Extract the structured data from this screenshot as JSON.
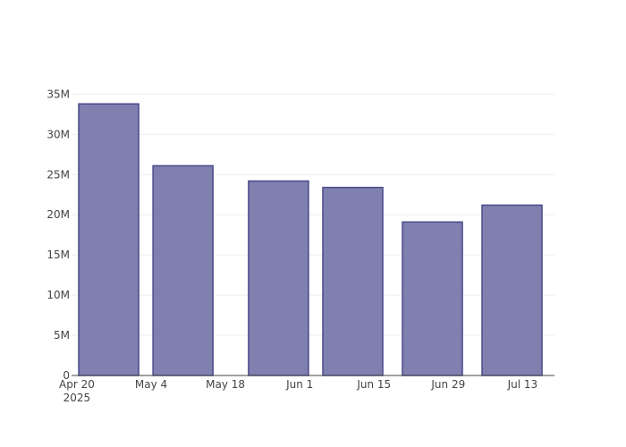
{
  "chart_data": {
    "type": "bar",
    "x": [
      "2025-04-26",
      "2025-05-10",
      "2025-05-28",
      "2025-06-11",
      "2025-06-26",
      "2025-07-11"
    ],
    "values": [
      33800000,
      26100000,
      24200000,
      23400000,
      19100000,
      21200000
    ],
    "color": "#7f7fb0",
    "edge_color": "#4b4b8a",
    "xlim": [
      "2025-04-19",
      "2025-07-19"
    ],
    "xticks": [
      {
        "value": "2025-04-20",
        "label": "Apr 20\n2025"
      },
      {
        "value": "2025-05-04",
        "label": "May 4"
      },
      {
        "value": "2025-05-18",
        "label": "May 18"
      },
      {
        "value": "2025-06-01",
        "label": "Jun 1"
      },
      {
        "value": "2025-06-15",
        "label": "Jun 15"
      },
      {
        "value": "2025-06-29",
        "label": "Jun 29"
      },
      {
        "value": "2025-07-13",
        "label": "Jul 13"
      }
    ],
    "ylim": [
      0,
      35600000
    ],
    "yticks": [
      0,
      {
        "value": 5000000,
        "label": "5M"
      },
      {
        "value": 10000000,
        "label": "10M"
      },
      {
        "value": 15000000,
        "label": "15M"
      },
      {
        "value": 20000000,
        "label": "20M"
      },
      {
        "value": 25000000,
        "label": "25M"
      },
      {
        "value": 30000000,
        "label": "30M"
      },
      {
        "value": 35000000,
        "label": "35M"
      }
    ],
    "grid": true
  }
}
